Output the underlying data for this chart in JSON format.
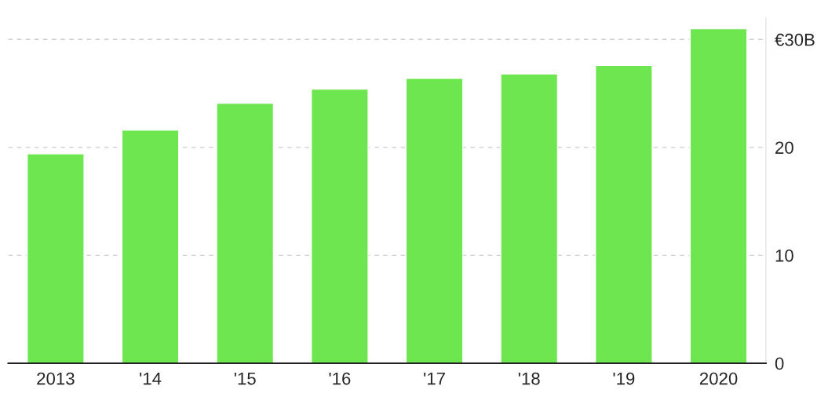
{
  "chart_data": {
    "type": "bar",
    "categories": [
      "2013",
      "'14",
      "'15",
      "'16",
      "'17",
      "'18",
      "'19",
      "2020"
    ],
    "values": [
      19.4,
      21.6,
      24.1,
      25.4,
      26.4,
      26.8,
      27.6,
      31.0
    ],
    "color": "#6ee64f",
    "ylim": [
      0,
      32
    ],
    "yticks": [
      0,
      10,
      20,
      {
        "value": 30,
        "label": "€30B"
      }
    ],
    "grid": "y"
  }
}
